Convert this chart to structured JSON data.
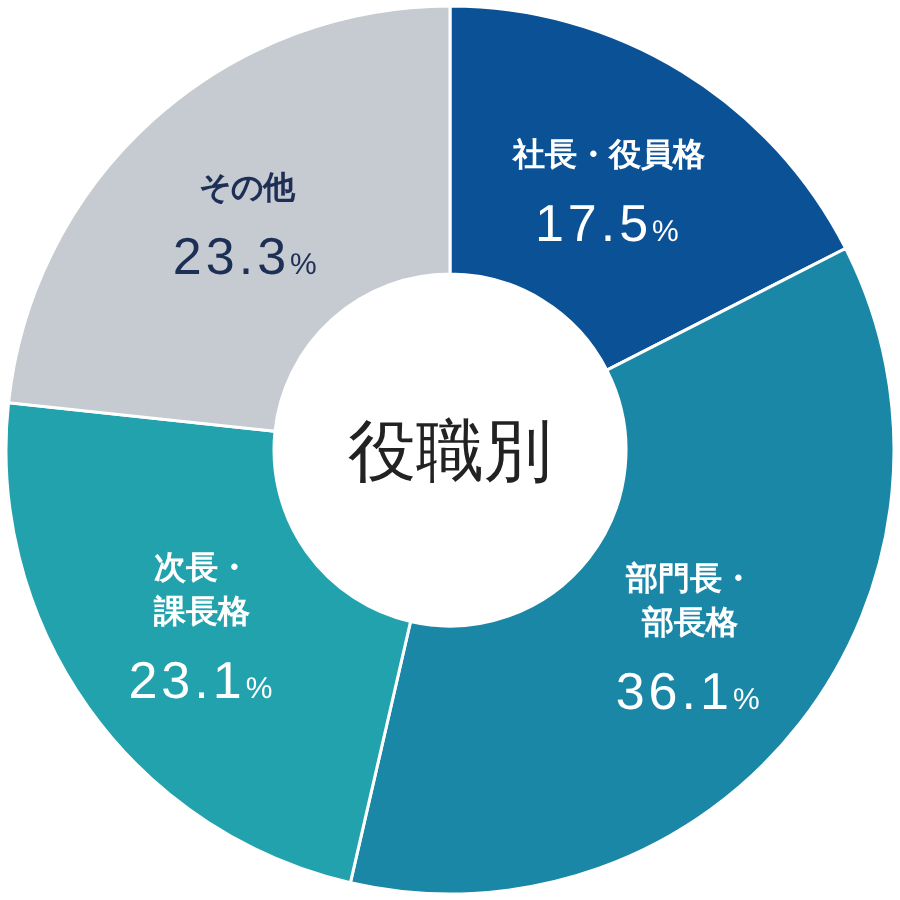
{
  "chart_data": {
    "type": "donut",
    "title": "役職別",
    "categories": [
      "社長・役員格",
      "部門長・部長格",
      "次長・課長格",
      "その他"
    ],
    "values": [
      17.5,
      36.1,
      23.1,
      23.3
    ],
    "colors": [
      "#0b5195",
      "#1a87a6",
      "#22a2ad",
      "#c6cbd2"
    ],
    "value_labels": [
      "17.5%",
      "36.1%",
      "23.1%",
      "23.3%"
    ]
  }
}
